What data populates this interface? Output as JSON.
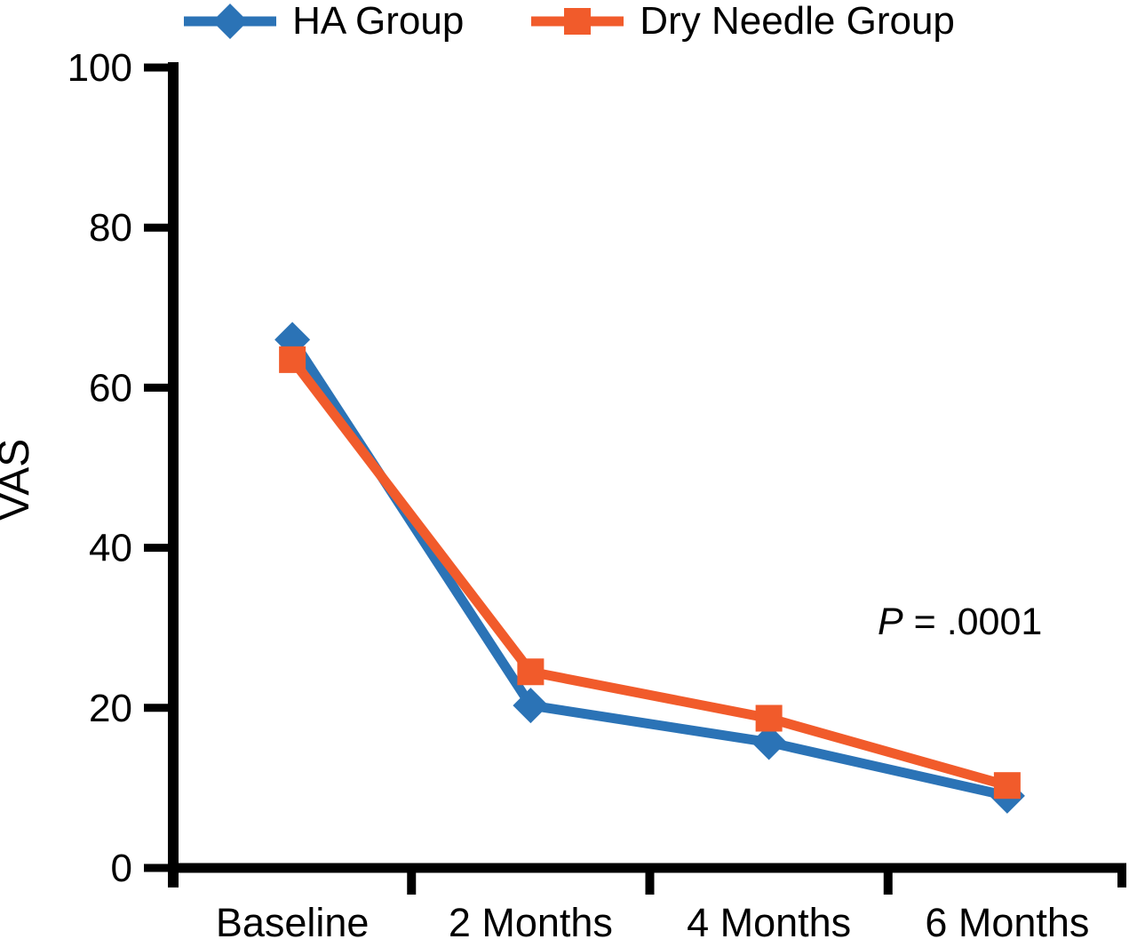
{
  "chart_data": {
    "type": "line",
    "categories": [
      "Baseline",
      "2 Months",
      "4 Months",
      "6 Months"
    ],
    "series": [
      {
        "name": "HA Group",
        "color": "#2b73b6",
        "marker": "diamond",
        "values": [
          66,
          20.3,
          15.7,
          9
        ]
      },
      {
        "name": "Dry Needle Group",
        "color": "#f15b2b",
        "marker": "square",
        "values": [
          63.5,
          24.5,
          18.7,
          10.3
        ]
      }
    ],
    "title": "",
    "xlabel": "",
    "ylabel": "VAS",
    "ylim": [
      0,
      100
    ],
    "yticks": [
      0,
      20,
      40,
      60,
      80,
      100
    ],
    "grid": false,
    "legend_position": "top",
    "annotation": {
      "italic": "P",
      "rest": " = .0001"
    }
  },
  "colors": {
    "axis": "#000000",
    "background": "#ffffff",
    "ha_group": "#2b73b6",
    "dry_needle_group": "#f15b2b"
  }
}
